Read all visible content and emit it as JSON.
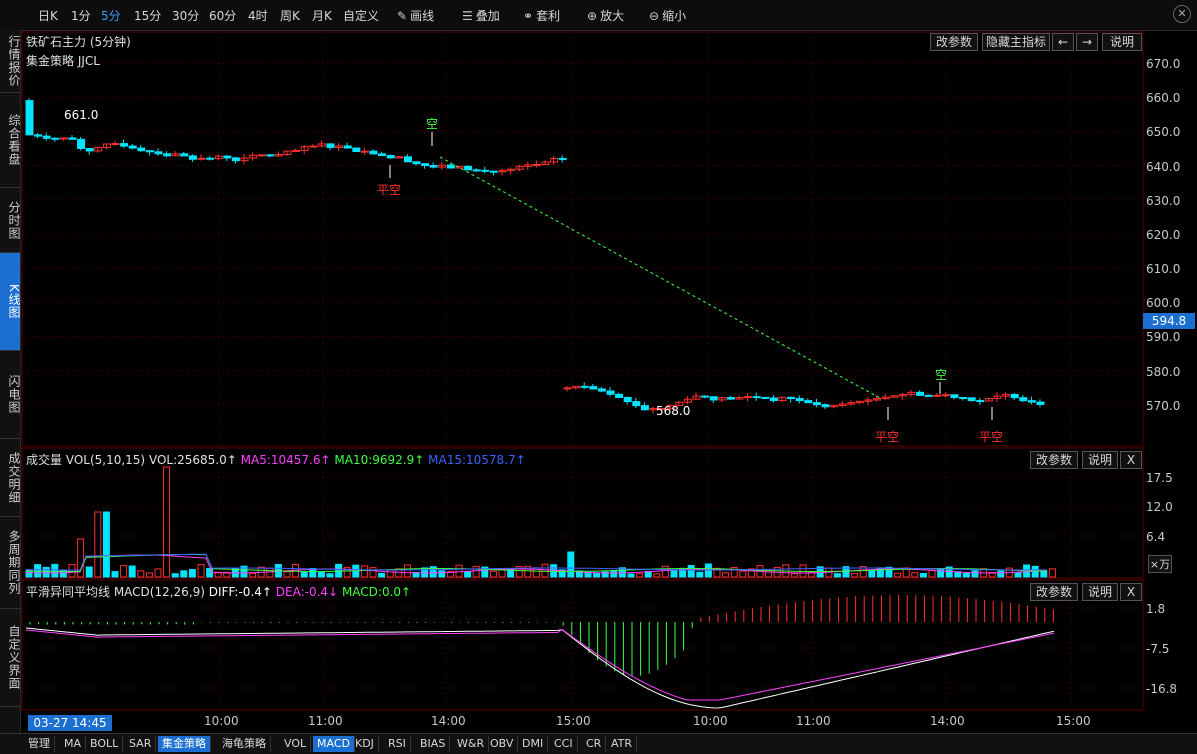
{
  "toolbar": {
    "periods": [
      "日K",
      "1分",
      "5分",
      "15分",
      "30分",
      "60分",
      "4时",
      "周K",
      "月K",
      "自定义"
    ],
    "active_period": "5分",
    "tools": [
      {
        "label": "画线",
        "icon": "pencil-icon"
      },
      {
        "label": "叠加",
        "icon": "stack-icon"
      },
      {
        "label": "套利",
        "icon": "link-icon"
      },
      {
        "label": "放大",
        "icon": "zoom-in-icon"
      },
      {
        "label": "缩小",
        "icon": "zoom-out-icon"
      }
    ]
  },
  "sidebar": {
    "tabs": [
      "行情报价",
      "综合看盘",
      "分时图",
      "K线图",
      "闪电图",
      "成交明细",
      "多周期同列",
      "自定义界面"
    ],
    "active": "K线图"
  },
  "main_chart": {
    "title": "铁矿石主力 (5分钟)",
    "strategy": "集金策略 JJCL",
    "buttons": [
      "改参数",
      "隐藏主指标",
      "←",
      "→",
      "说明"
    ],
    "y_ticks": [
      "670.0",
      "660.0",
      "650.0",
      "640.0",
      "630.0",
      "620.0",
      "610.0",
      "600.0",
      "590.0",
      "580.0",
      "570.0"
    ],
    "current_price": "594.8",
    "high_label": "661.0",
    "low_label": "568.0",
    "signals": [
      {
        "text": "平空",
        "type": "cover"
      },
      {
        "text": "空",
        "type": "short"
      },
      {
        "text": "平空",
        "type": "cover"
      },
      {
        "text": "空",
        "type": "short"
      },
      {
        "text": "平空",
        "type": "cover"
      }
    ]
  },
  "volume_panel": {
    "title": "成交量 VOL(5,10,15)",
    "vol": "VOL:25685.0↑",
    "ma5": "MA5:10457.6↑",
    "ma10": "MA10:9692.9↑",
    "ma15": "MA15:10578.7↑",
    "buttons": [
      "改参数",
      "说明",
      "X"
    ],
    "y_ticks": [
      "17.5",
      "12.0",
      "6.4"
    ],
    "unit_button": "×万",
    "colors": {
      "ma5": "#ff40ff",
      "ma10": "#40ff40",
      "ma15": "#4060ff"
    }
  },
  "macd_panel": {
    "title": "平滑异同平均线 MACD(12,26,9)",
    "diff": "DIFF:-0.4↑",
    "dea": "DEA:-0.4↓",
    "macd": "MACD:0.0↑",
    "buttons": [
      "改参数",
      "说明",
      "X"
    ],
    "y_ticks": [
      "1.8",
      "-7.5",
      "-16.8"
    ],
    "colors": {
      "diff": "#ffffff",
      "dea": "#ff40ff",
      "macd": "#40ff40"
    }
  },
  "x_axis": {
    "date_tag": "03-27 14:45",
    "ticks": [
      "10:00",
      "11:00",
      "14:00",
      "15:00",
      "10:00",
      "11:00",
      "14:00",
      "15:00"
    ]
  },
  "bottom_tabs": [
    "管理",
    "MA",
    "BOLL",
    "SAR",
    "集金策略",
    "海龟策略",
    "VOL",
    "MACD",
    "KDJ",
    "RSI",
    "BIAS",
    "W&R",
    "OBV",
    "DMI",
    "CCI",
    "CR",
    "ATR"
  ],
  "bottom_active": [
    "集金策略",
    "MACD"
  ],
  "colors": {
    "up": "#ff3030",
    "down": "#00e5ff",
    "accent": "#1a6fd0",
    "grid": "#3a0000"
  }
}
